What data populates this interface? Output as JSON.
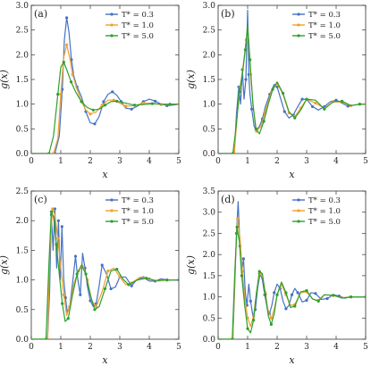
{
  "chart_data": [
    {
      "type": "line",
      "panel_label": "(a)",
      "xlabel": "x",
      "ylabel": "g(x)",
      "xlim": [
        0,
        5
      ],
      "ylim": [
        0,
        3.0
      ],
      "xticks": [
        "0",
        "1",
        "2",
        "3",
        "4",
        "5"
      ],
      "yticks": [
        "0.0",
        "0.5",
        "1.0",
        "1.5",
        "2.0",
        "2.5",
        "3.0"
      ],
      "legend_position": "top-right",
      "series": [
        {
          "name": "T* = 0.3",
          "color": "#4472c4",
          "x": [
            0.8,
            0.95,
            1.05,
            1.12,
            1.2,
            1.28,
            1.36,
            1.45,
            1.55,
            1.7,
            1.85,
            2.0,
            2.15,
            2.3,
            2.45,
            2.6,
            2.75,
            2.9,
            3.05,
            3.2,
            3.4,
            3.6,
            3.8,
            4.0,
            4.2,
            4.4,
            4.6,
            4.8,
            5.0
          ],
          "y": [
            0.0,
            0.35,
            1.3,
            2.3,
            2.75,
            2.45,
            1.9,
            1.55,
            1.35,
            1.15,
            0.85,
            0.62,
            0.6,
            0.75,
            1.05,
            1.2,
            1.25,
            1.18,
            1.05,
            0.92,
            0.9,
            0.96,
            1.05,
            1.1,
            1.06,
            1.0,
            0.97,
            0.98,
            1.0
          ]
        },
        {
          "name": "T* = 1.0",
          "color": "#f0a030",
          "x": [
            0.75,
            0.9,
            1.0,
            1.1,
            1.2,
            1.3,
            1.4,
            1.55,
            1.7,
            1.85,
            2.0,
            2.2,
            2.4,
            2.6,
            2.8,
            3.0,
            3.2,
            3.5,
            3.8,
            4.1,
            4.4,
            4.7,
            5.0
          ],
          "y": [
            0.0,
            0.3,
            1.2,
            1.95,
            2.2,
            1.95,
            1.6,
            1.3,
            1.05,
            0.88,
            0.8,
            0.84,
            0.98,
            1.08,
            1.08,
            1.02,
            0.96,
            0.97,
            1.02,
            1.02,
            0.99,
            1.0,
            1.0
          ]
        },
        {
          "name": "T* = 5.0",
          "color": "#2ca02c",
          "x": [
            0.6,
            0.75,
            0.9,
            1.0,
            1.1,
            1.2,
            1.35,
            1.5,
            1.7,
            1.9,
            2.1,
            2.3,
            2.5,
            2.7,
            2.9,
            3.2,
            3.5,
            3.8,
            4.1,
            4.4,
            4.7,
            5.0
          ],
          "y": [
            0.0,
            0.35,
            1.2,
            1.75,
            1.85,
            1.7,
            1.45,
            1.25,
            1.05,
            0.93,
            0.88,
            0.9,
            0.98,
            1.05,
            1.06,
            1.02,
            0.98,
            0.99,
            1.01,
            1.0,
            1.0,
            1.0
          ]
        }
      ]
    },
    {
      "type": "line",
      "panel_label": "(b)",
      "xlabel": "x",
      "ylabel": "g(x)",
      "xlim": [
        0,
        5
      ],
      "ylim": [
        0,
        3.0
      ],
      "xticks": [
        "0",
        "1",
        "2",
        "3",
        "4",
        "5"
      ],
      "yticks": [
        "0.0",
        "0.5",
        "1.0",
        "1.5",
        "2.0",
        "2.5",
        "3.0"
      ],
      "legend_position": "top-right",
      "series": [
        {
          "name": "T* = 0.3",
          "color": "#4472c4",
          "x": [
            0.55,
            0.62,
            0.7,
            0.76,
            0.82,
            0.88,
            0.94,
            1.0,
            1.04,
            1.08,
            1.14,
            1.22,
            1.3,
            1.4,
            1.5,
            1.6,
            1.75,
            1.9,
            2.0,
            2.1,
            2.25,
            2.4,
            2.55,
            2.7,
            2.85,
            3.0,
            3.2,
            3.4,
            3.6,
            3.8,
            4.0,
            4.2,
            4.4,
            4.6,
            4.8,
            5.0
          ],
          "y": [
            0.0,
            0.8,
            1.35,
            1.0,
            1.7,
            1.1,
            1.5,
            2.9,
            1.6,
            1.2,
            0.9,
            0.55,
            0.48,
            0.55,
            0.7,
            0.95,
            1.2,
            1.4,
            1.35,
            1.15,
            0.85,
            0.72,
            0.78,
            0.95,
            1.1,
            1.1,
            0.95,
            0.88,
            0.95,
            1.05,
            1.08,
            1.02,
            0.96,
            0.98,
            1.0,
            1.0
          ]
        },
        {
          "name": "T* = 1.0",
          "color": "#f0a030",
          "x": [
            0.55,
            0.65,
            0.75,
            0.85,
            0.95,
            1.02,
            1.1,
            1.2,
            1.3,
            1.45,
            1.6,
            1.8,
            2.0,
            2.2,
            2.4,
            2.6,
            2.8,
            3.0,
            3.3,
            3.6,
            3.9,
            4.2,
            4.5,
            4.8,
            5.0
          ],
          "y": [
            0.0,
            0.8,
            1.35,
            1.8,
            2.3,
            2.4,
            1.6,
            0.9,
            0.45,
            0.55,
            0.85,
            1.25,
            1.42,
            1.2,
            0.82,
            0.75,
            0.92,
            1.1,
            1.02,
            0.92,
            1.05,
            1.04,
            0.97,
            1.0,
            1.0
          ]
        },
        {
          "name": "T* = 5.0",
          "color": "#2ca02c",
          "x": [
            0.5,
            0.62,
            0.72,
            0.82,
            0.92,
            1.0,
            1.08,
            1.18,
            1.28,
            1.4,
            1.55,
            1.7,
            1.85,
            2.0,
            2.2,
            2.4,
            2.6,
            2.8,
            3.0,
            3.3,
            3.6,
            3.9,
            4.2,
            4.5,
            4.8,
            5.0
          ],
          "y": [
            0.0,
            0.6,
            1.25,
            1.6,
            2.1,
            2.6,
            1.9,
            1.0,
            0.5,
            0.4,
            0.65,
            1.0,
            1.3,
            1.45,
            1.22,
            0.85,
            0.72,
            0.88,
            1.1,
            1.08,
            0.9,
            1.05,
            1.06,
            0.97,
            1.0,
            1.0
          ]
        }
      ]
    },
    {
      "type": "line",
      "panel_label": "(c)",
      "xlabel": "x",
      "ylabel": "g(x)",
      "xlim": [
        0,
        5
      ],
      "ylim": [
        0,
        2.5
      ],
      "xticks": [
        "0",
        "1",
        "2",
        "3",
        "4",
        "5"
      ],
      "yticks": [
        "0.0",
        "0.5",
        "1.0",
        "1.5",
        "2.0",
        "2.5"
      ],
      "legend_position": "top-right",
      "series": [
        {
          "name": "T* = 0.3",
          "color": "#4472c4",
          "x": [
            0.55,
            0.62,
            0.68,
            0.74,
            0.8,
            0.86,
            0.92,
            0.98,
            1.04,
            1.1,
            1.16,
            1.22,
            1.3,
            1.4,
            1.5,
            1.58,
            1.66,
            1.74,
            1.82,
            1.9,
            2.0,
            2.1,
            2.2,
            2.3,
            2.4,
            2.55,
            2.7,
            2.85,
            3.0,
            3.2,
            3.4,
            3.6,
            3.8,
            4.0,
            4.2,
            4.4,
            4.6,
            4.8,
            5.0
          ],
          "y": [
            0.0,
            0.8,
            2.1,
            1.5,
            2.2,
            1.2,
            2.0,
            1.0,
            1.9,
            1.0,
            0.7,
            0.45,
            0.55,
            0.95,
            1.4,
            1.0,
            0.75,
            1.45,
            1.2,
            0.9,
            0.65,
            0.55,
            0.6,
            0.9,
            1.25,
            1.1,
            0.85,
            0.88,
            1.05,
            1.05,
            0.9,
            1.02,
            1.04,
            0.98,
            0.98,
            1.02,
            1.0,
            1.0,
            1.0
          ]
        },
        {
          "name": "T* = 1.0",
          "color": "#f0a030",
          "x": [
            0.55,
            0.63,
            0.72,
            0.8,
            0.9,
            1.0,
            1.1,
            1.2,
            1.3,
            1.45,
            1.6,
            1.75,
            1.9,
            2.05,
            2.2,
            2.4,
            2.6,
            2.8,
            3.0,
            3.2,
            3.4,
            3.7,
            4.0,
            4.3,
            4.6,
            5.0
          ],
          "y": [
            0.0,
            1.5,
            2.2,
            2.1,
            1.7,
            1.2,
            0.75,
            0.4,
            0.55,
            0.95,
            1.15,
            1.25,
            1.0,
            0.65,
            0.55,
            0.8,
            1.15,
            1.2,
            1.05,
            0.92,
            0.95,
            1.05,
            1.02,
            0.98,
            1.0,
            1.0
          ]
        },
        {
          "name": "T* = 5.0",
          "color": "#2ca02c",
          "x": [
            0.5,
            0.6,
            0.68,
            0.76,
            0.85,
            0.95,
            1.05,
            1.15,
            1.25,
            1.4,
            1.55,
            1.7,
            1.85,
            2.0,
            2.15,
            2.3,
            2.5,
            2.7,
            2.9,
            3.1,
            3.3,
            3.6,
            3.9,
            4.2,
            4.6,
            5.0
          ],
          "y": [
            0.0,
            1.3,
            2.15,
            2.05,
            1.6,
            1.1,
            0.6,
            0.3,
            0.35,
            0.75,
            1.1,
            1.25,
            1.1,
            0.75,
            0.5,
            0.55,
            0.85,
            1.15,
            1.18,
            1.02,
            0.92,
            1.0,
            1.03,
            0.99,
            1.0,
            1.0
          ]
        }
      ]
    },
    {
      "type": "line",
      "panel_label": "(d)",
      "xlabel": "x",
      "ylabel": "g(x)",
      "xlim": [
        0,
        5
      ],
      "ylim": [
        0,
        3.5
      ],
      "xticks": [
        "0",
        "1",
        "2",
        "3",
        "4",
        "5"
      ],
      "yticks": [
        "0.0",
        "0.5",
        "1.0",
        "1.5",
        "2.0",
        "2.5",
        "3.0",
        "3.5"
      ],
      "legend_position": "top-right",
      "series": [
        {
          "name": "T* = 0.3",
          "color": "#4472c4",
          "x": [
            0.5,
            0.56,
            0.62,
            0.68,
            0.74,
            0.8,
            0.86,
            0.92,
            0.98,
            1.04,
            1.1,
            1.18,
            1.26,
            1.34,
            1.42,
            1.5,
            1.58,
            1.66,
            1.74,
            1.82,
            1.9,
            2.0,
            2.1,
            2.2,
            2.3,
            2.4,
            2.5,
            2.6,
            2.7,
            2.85,
            3.0,
            3.15,
            3.3,
            3.5,
            3.7,
            3.9,
            4.1,
            4.3,
            4.5,
            4.7,
            5.0
          ],
          "y": [
            0.0,
            1.2,
            2.5,
            3.25,
            2.2,
            1.6,
            1.9,
            1.1,
            0.8,
            1.3,
            0.9,
            0.55,
            0.7,
            1.2,
            1.55,
            1.4,
            1.05,
            0.75,
            0.6,
            0.8,
            1.1,
            1.3,
            1.2,
            0.9,
            0.72,
            0.8,
            1.05,
            1.2,
            1.1,
            0.88,
            0.92,
            1.1,
            1.08,
            0.94,
            0.96,
            1.05,
            1.02,
            0.97,
            1.0,
            1.0,
            1.0
          ]
        },
        {
          "name": "T* = 1.0",
          "color": "#f0a030",
          "x": [
            0.5,
            0.58,
            0.66,
            0.74,
            0.82,
            0.9,
            1.0,
            1.1,
            1.2,
            1.3,
            1.4,
            1.5,
            1.6,
            1.7,
            1.8,
            1.9,
            2.0,
            2.15,
            2.3,
            2.45,
            2.6,
            2.8,
            3.0,
            3.2,
            3.4,
            3.6,
            3.9,
            4.2,
            4.5,
            5.0
          ],
          "y": [
            0.0,
            1.8,
            2.85,
            2.4,
            1.6,
            1.0,
            0.5,
            0.3,
            0.55,
            1.1,
            1.55,
            1.5,
            1.1,
            0.65,
            0.5,
            0.7,
            1.05,
            1.3,
            1.05,
            0.8,
            0.82,
            1.1,
            1.12,
            0.95,
            0.92,
            1.05,
            1.03,
            0.98,
            1.0,
            1.0
          ]
        },
        {
          "name": "T* = 5.0",
          "color": "#2ca02c",
          "x": [
            0.48,
            0.56,
            0.64,
            0.72,
            0.8,
            0.9,
            1.0,
            1.1,
            1.2,
            1.3,
            1.4,
            1.5,
            1.6,
            1.7,
            1.8,
            1.9,
            2.0,
            2.15,
            2.3,
            2.45,
            2.6,
            2.8,
            3.0,
            3.2,
            3.4,
            3.6,
            3.9,
            4.2,
            4.5,
            5.0
          ],
          "y": [
            0.0,
            1.5,
            2.65,
            2.3,
            1.5,
            0.8,
            0.25,
            0.15,
            0.45,
            1.1,
            1.6,
            1.55,
            1.05,
            0.55,
            0.35,
            0.6,
            1.05,
            1.35,
            1.1,
            0.75,
            0.78,
            1.12,
            1.15,
            0.95,
            0.9,
            1.05,
            1.04,
            0.97,
            1.0,
            1.0
          ]
        }
      ]
    }
  ]
}
